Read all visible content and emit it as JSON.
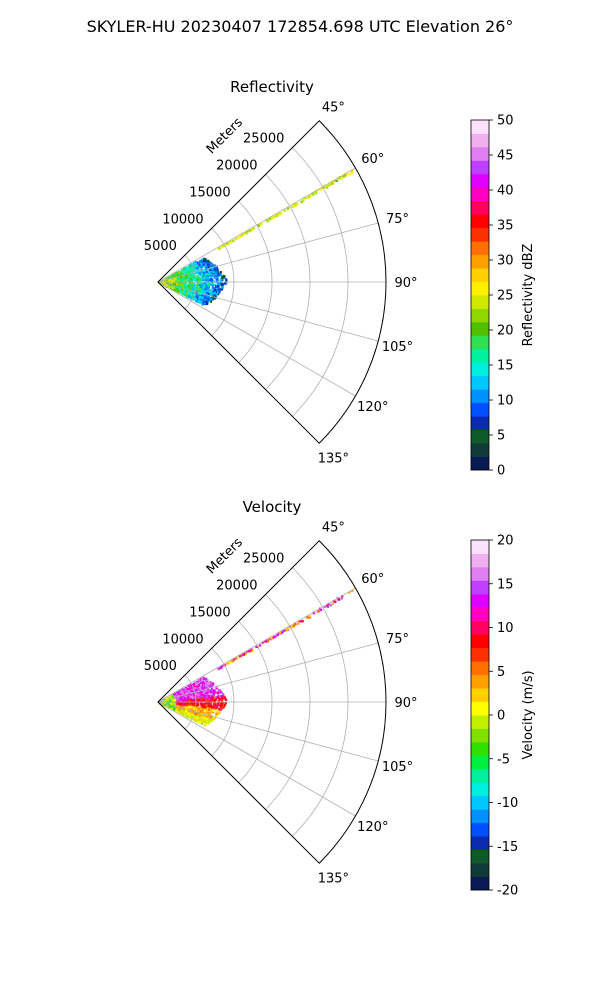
{
  "figure": {
    "suptitle": "SKYLER-HU  20230407  172854.698 UTC Elevation 26°"
  },
  "chart_data": [
    {
      "type": "heatmap",
      "subtype": "polar-sector",
      "title": "Reflectivity",
      "radial_label": "Meters",
      "radial_ticks": [
        5000,
        10000,
        15000,
        20000,
        25000
      ],
      "radial_range": [
        0,
        30000
      ],
      "azimuth_ticks": [
        "45°",
        "60°",
        "75°",
        "90°",
        "105°",
        "120°",
        "135°"
      ],
      "azimuth_range_deg": [
        45,
        135
      ],
      "grid": true,
      "colorbar": {
        "label": "Reflectivity dBZ",
        "ticks": [
          0,
          5,
          10,
          15,
          20,
          25,
          30,
          35,
          40,
          45,
          50
        ],
        "range": [
          0,
          50
        ],
        "colors": [
          "#0a1a55",
          "#103a3a",
          "#0e5a2a",
          "#0a2bb0",
          "#0050ff",
          "#0090ff",
          "#00c8ff",
          "#00eedd",
          "#00f0a0",
          "#30e050",
          "#50c000",
          "#90d800",
          "#d0e800",
          "#fff000",
          "#ffd000",
          "#ffa000",
          "#ff7000",
          "#ff3000",
          "#ff0000",
          "#ff0060",
          "#ff00c0",
          "#e000ff",
          "#c040ff",
          "#e080f0",
          "#f0b0f0",
          "#fce0fc"
        ]
      },
      "data_summary": "Echoes within about 9 km of the radar: 15-30 dBZ near the origin, 5-15 dBZ at the outer edge; a thin 20-27 dBZ streak along the 60° radial out to about 30 km."
    },
    {
      "type": "heatmap",
      "subtype": "polar-sector",
      "title": "Velocity",
      "radial_label": "Meters",
      "radial_ticks": [
        5000,
        10000,
        15000,
        20000,
        25000
      ],
      "radial_range": [
        0,
        30000
      ],
      "azimuth_ticks": [
        "45°",
        "60°",
        "75°",
        "90°",
        "105°",
        "120°",
        "135°"
      ],
      "azimuth_range_deg": [
        45,
        135
      ],
      "grid": true,
      "colorbar": {
        "label": "Velocity (m/s)",
        "ticks": [
          -20,
          -15,
          -10,
          -5,
          0,
          5,
          10,
          15,
          20
        ],
        "range": [
          -20,
          20
        ],
        "colors": [
          "#0a1a55",
          "#103a3a",
          "#0e5a2a",
          "#0a2bb0",
          "#0050ff",
          "#0090ff",
          "#00c8ff",
          "#00eedd",
          "#00f0a0",
          "#00f040",
          "#30e000",
          "#80e000",
          "#c0f000",
          "#ffff00",
          "#ffd000",
          "#ffa000",
          "#ff7000",
          "#ff3000",
          "#ff0000",
          "#ff0060",
          "#ff00c0",
          "#e000ff",
          "#c040ff",
          "#e080f0",
          "#f0b0f0",
          "#fce0fc"
        ]
      },
      "data_summary": "Positive velocities 10-15 m/s at azimuth 60-85°, 5-10 m/s near 90°, 0-5 m/s at 95-110°, -5 to 0 m/s near the origin; thin streak along the 60° radial."
    }
  ]
}
